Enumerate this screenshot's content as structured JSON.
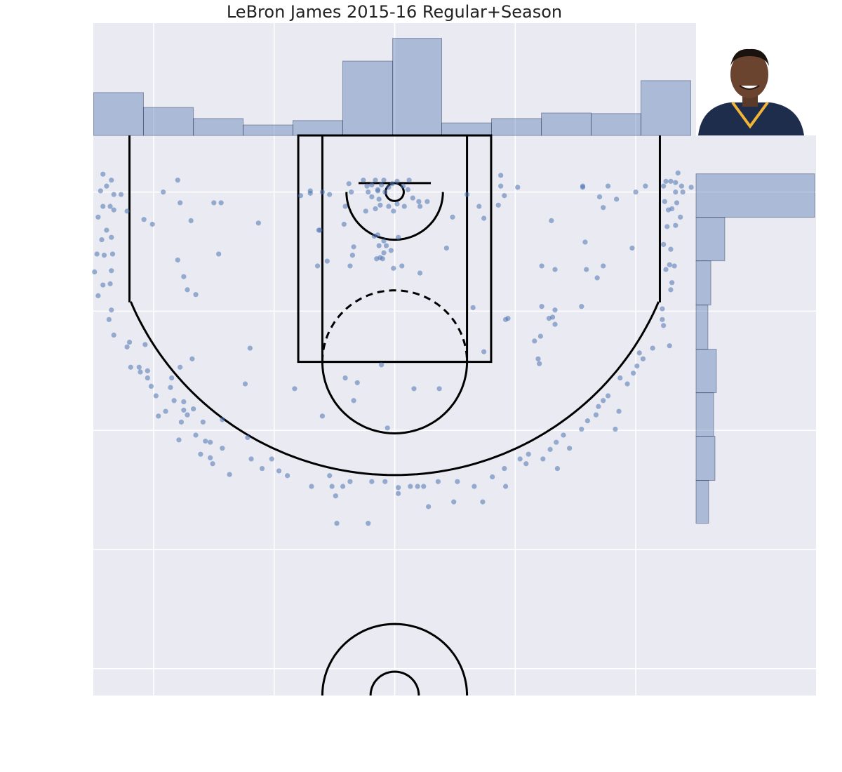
{
  "chart_data": [
    {
      "type": "scatter",
      "title": "LeBron James 2015-16 Regular+Season",
      "color": "#4c72b0",
      "x": [
        -242,
        -235,
        -239,
        -244,
        -233,
        -227,
        -242,
        -236,
        -233,
        -222,
        -246,
        -239,
        -243,
        -235,
        -247,
        -241,
        -234,
        -249,
        -235,
        -242,
        -236,
        -246,
        -235,
        -237,
        -233,
        -220,
        -222,
        -207,
        -219,
        -212,
        -205,
        -205,
        -211,
        -202,
        -198,
        -186,
        -185,
        -178,
        -183,
        -190,
        -196,
        -175,
        -175,
        -167,
        -172,
        -177,
        -179,
        -159,
        -165,
        -157,
        -153,
        -161,
        -143,
        -153,
        -151,
        -137,
        -143,
        -168,
        -122,
        -119,
        -124,
        -120,
        -110,
        -102,
        -96,
        -89,
        -69,
        -54,
        -52,
        -49,
        -43,
        -37,
        -48,
        -22,
        -19,
        -8,
        3,
        3,
        13,
        19,
        24,
        36,
        28,
        49,
        52,
        66,
        73,
        81,
        92,
        91,
        104,
        109,
        111,
        123,
        129,
        134,
        135,
        145,
        140,
        155,
        160,
        167,
        169,
        173,
        177,
        183,
        186,
        187,
        193,
        198,
        201,
        206,
        203,
        214,
        228,
        222,
        223,
        222,
        229,
        230,
        225,
        232,
        228,
        229,
        223,
        233,
        226,
        237,
        230,
        234,
        224,
        227,
        225,
        229,
        233,
        235,
        238,
        233,
        239,
        246,
        223,
        208,
        200,
        184,
        177,
        170,
        173,
        156,
        156,
        197,
        158,
        159,
        173,
        168,
        130,
        122,
        133,
        155,
        122,
        133,
        131,
        128,
        133,
        121,
        116,
        119,
        120,
        102,
        88,
        88,
        91,
        86,
        70,
        74,
        60,
        48,
        43,
        65,
        74,
        94,
        92,
        37,
        16,
        21,
        6,
        -1,
        -10,
        -9,
        -14,
        -13,
        -7,
        -3,
        -15,
        -34,
        -37,
        -35,
        -56,
        -64,
        -62,
        -63,
        -42,
        -41,
        -38,
        -36,
        -26,
        -23,
        -22,
        -19,
        -16,
        -14,
        -11,
        -9,
        -13,
        -8,
        -5,
        -2,
        2,
        7,
        11,
        15,
        20,
        21,
        27,
        8,
        2,
        -5,
        -1,
        -16,
        -12,
        -24,
        -19,
        12,
        -14,
        -70,
        -78,
        -70,
        -60,
        -54,
        -113,
        -146,
        -150,
        -144,
        -180,
        -192,
        -178,
        -208,
        -201,
        -169,
        -180,
        -175,
        -172,
        -165,
        -83,
        -60,
        -41,
        -31,
        -34,
        -6,
        -11,
        -9,
        3,
        -17,
        -12
      ],
      "values": [
        -15,
        -10,
        -5,
        -1,
        2,
        2,
        12,
        12,
        15,
        16,
        21,
        32,
        40,
        38,
        52,
        53,
        52,
        67,
        66,
        78,
        77,
        87,
        99,
        107,
        120,
        126,
        130,
        128,
        147,
        147,
        150,
        156,
        151,
        163,
        171,
        164,
        156,
        147,
        175,
        184,
        188,
        176,
        183,
        182,
        187,
        193,
        208,
        193,
        204,
        209,
        210,
        220,
        215,
        223,
        228,
        237,
        191,
        140,
        206,
        224,
        161,
        131,
        232,
        224,
        234,
        238,
        247,
        238,
        247,
        255,
        247,
        243,
        278,
        278,
        243,
        243,
        248,
        253,
        247,
        247,
        247,
        243,
        264,
        260,
        243,
        247,
        260,
        239,
        247,
        232,
        224,
        228,
        220,
        224,
        216,
        210,
        232,
        215,
        204,
        199,
        192,
        187,
        180,
        175,
        171,
        199,
        184,
        156,
        161,
        152,
        146,
        140,
        135,
        131,
        129,
        107,
        112,
        98,
        82,
        76,
        65,
        62,
        61,
        48,
        44,
        28,
        29,
        21,
        14,
        9,
        8,
        15,
        -9,
        -9,
        -8,
        -16,
        -5,
        0,
        0,
        -4,
        -5,
        -5,
        0,
        6,
        -5,
        4,
        13,
        -5,
        -4,
        47,
        42,
        65,
        62,
        72,
        24,
        62,
        65,
        96,
        96,
        99,
        105,
        106,
        111,
        121,
        125,
        140,
        144,
        -4,
        -14,
        -5,
        3,
        11,
        12,
        22,
        2,
        21,
        47,
        97,
        134,
        106,
        107,
        165,
        165,
        68,
        62,
        64,
        56,
        51,
        36,
        45,
        45,
        49,
        56,
        46,
        62,
        53,
        58,
        62,
        32,
        32,
        27,
        12,
        -7,
        0,
        -10,
        -5,
        0,
        4,
        -10,
        -1,
        -6,
        -10,
        6,
        0,
        -4,
        -7,
        -9,
        -5,
        -2,
        5,
        8,
        12,
        8,
        12,
        10,
        12,
        16,
        14,
        11,
        16,
        -6,
        -10,
        -2,
        1,
        3,
        -1,
        0,
        2,
        26,
        52,
        9,
        9,
        -10,
        0,
        9,
        23,
        27,
        24,
        57,
        71,
        82,
        86,
        165,
        188,
        156,
        160,
        175,
        198,
        145,
        41,
        38,
        37,
        55
      ],
      "xlim": [
        -250,
        250
      ],
      "ylim": [
        422.5,
        -47.5
      ],
      "xticks": [
        -200,
        -100,
        0,
        100,
        200
      ],
      "yticks": [
        0,
        100,
        200,
        300,
        400
      ],
      "grid": true
    },
    {
      "type": "histogram",
      "orientation": "vertical",
      "color": "#4c72b0",
      "bins": [
        -249.7,
        -208.4,
        -167,
        -125.7,
        -84.4,
        -43.1,
        -1.7,
        39,
        80.3,
        121.7,
        163,
        204.3,
        245.6
      ],
      "values": [
        147,
        96,
        58,
        36,
        51,
        255,
        333,
        43,
        58,
        77,
        75,
        188
      ],
      "ylim": [
        0,
        385
      ]
    },
    {
      "type": "histogram",
      "orientation": "horizontal",
      "color": "#4c72b0",
      "bins": [
        -15.3,
        21.2,
        57.7,
        94.8,
        131.9,
        168.4,
        204.9,
        242,
        278
      ],
      "values": [
        690,
        167,
        86,
        69,
        118,
        102,
        110,
        73
      ],
      "xlim": [
        0,
        698
      ]
    }
  ]
}
